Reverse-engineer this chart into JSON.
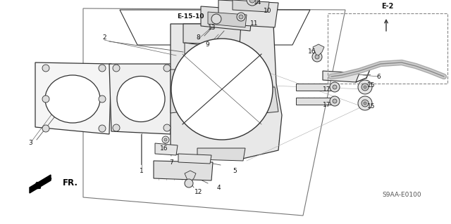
{
  "bg_color": "#ffffff",
  "diagram_code": "S9AA-E0100",
  "ref_code": "E-2",
  "sub_ref": "E-15-10",
  "fr_label": "FR.",
  "line_color": "#333333",
  "text_color": "#111111",
  "gray_fill": "#f0f0f0",
  "dark_gray": "#888888"
}
